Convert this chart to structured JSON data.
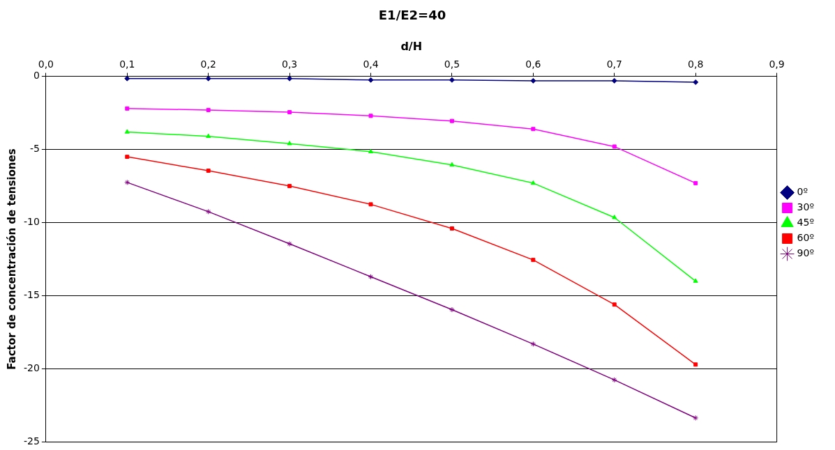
{
  "chart_data": {
    "type": "line",
    "title": "E1/E2=40",
    "xlabel": "d/H",
    "ylabel": "Factor de concentración de tensiones",
    "x": [
      0.1,
      0.2,
      0.3,
      0.4,
      0.5,
      0.6,
      0.7,
      0.8
    ],
    "xlim": [
      0,
      0.9
    ],
    "xticks": [
      {
        "value": 0,
        "label": "0,0"
      },
      {
        "value": 0.1,
        "label": "0,1"
      },
      {
        "value": 0.2,
        "label": "0,2"
      },
      {
        "value": 0.3,
        "label": "0,3"
      },
      {
        "value": 0.4,
        "label": "0,4"
      },
      {
        "value": 0.5,
        "label": "0,5"
      },
      {
        "value": 0.6,
        "label": "0,6"
      },
      {
        "value": 0.7,
        "label": "0,7"
      },
      {
        "value": 0.8,
        "label": "0,8"
      },
      {
        "value": 0.9,
        "label": "0,9"
      }
    ],
    "ylim": [
      -25,
      0
    ],
    "yticks": [
      -25,
      -20,
      -15,
      -10,
      -5,
      0
    ],
    "grid": "y",
    "legend": "right",
    "line_style": "solid",
    "series": [
      {
        "name": "0º",
        "color": "#000080",
        "marker": "diamond",
        "values": [
          -0.15,
          -0.15,
          -0.15,
          -0.25,
          -0.25,
          -0.3,
          -0.3,
          -0.4
        ]
      },
      {
        "name": "30º",
        "color": "#ff00ff",
        "marker": "square",
        "values": [
          -2.2,
          -2.3,
          -2.45,
          -2.7,
          -3.05,
          -3.6,
          -4.8,
          -7.3
        ]
      },
      {
        "name": "45º",
        "color": "#00ff00",
        "marker": "triangle",
        "values": [
          -3.8,
          -4.1,
          -4.6,
          -5.15,
          -6.05,
          -7.3,
          -9.65,
          -14.0
        ]
      },
      {
        "name": "60º",
        "color": "#ff0000",
        "marker": "square",
        "values": [
          -5.5,
          -6.45,
          -7.5,
          -8.75,
          -10.4,
          -12.55,
          -15.6,
          -19.7
        ]
      },
      {
        "name": "90º",
        "color": "#800080",
        "marker": "cross",
        "values": [
          -7.25,
          -9.25,
          -11.45,
          -13.7,
          -15.95,
          -18.3,
          -20.75,
          -23.35
        ]
      }
    ]
  }
}
